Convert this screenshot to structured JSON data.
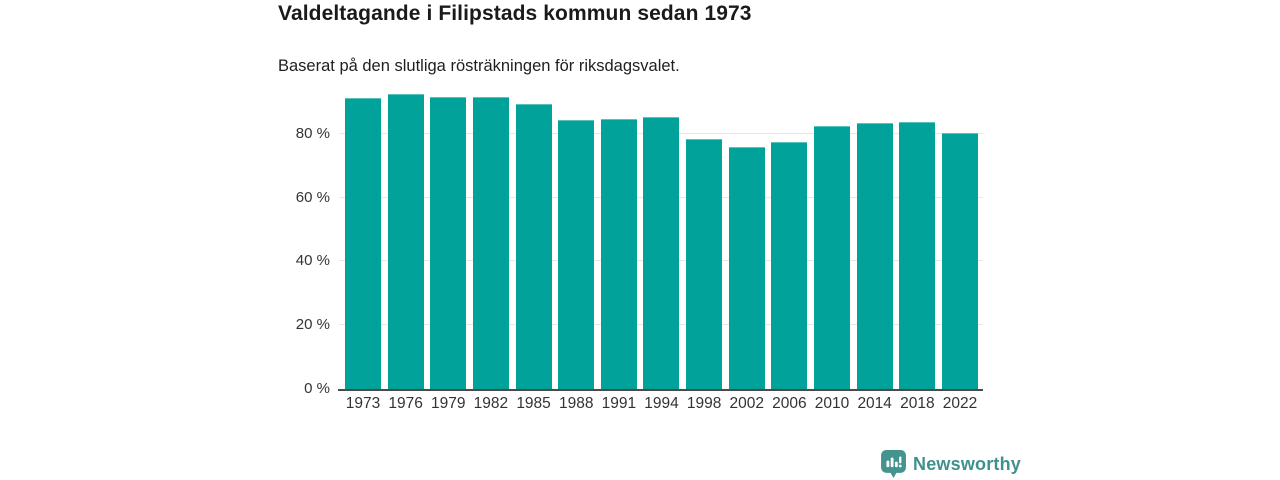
{
  "header": {
    "title": "Valdeltagande i Filipstads kommun sedan 1973",
    "subtitle": "Baserat på den slutliga rösträkningen för riksdagsvalet."
  },
  "chart_data": {
    "type": "bar",
    "title": "Valdeltagande i Filipstads kommun sedan 1973",
    "subtitle": "Baserat på den slutliga rösträkningen för riksdagsvalet.",
    "categories": [
      "1973",
      "1976",
      "1979",
      "1982",
      "1985",
      "1988",
      "1991",
      "1994",
      "1998",
      "2002",
      "2006",
      "2010",
      "2014",
      "2018",
      "2022"
    ],
    "values": [
      91.2,
      92.6,
      91.5,
      91.5,
      89.2,
      84.4,
      84.6,
      85.3,
      78.5,
      75.8,
      77.3,
      82.6,
      83.5,
      83.8,
      80.4
    ],
    "unit": "%",
    "xlabel": "",
    "ylabel": "",
    "ylim": [
      0,
      100
    ],
    "yticks": [
      0,
      20,
      40,
      60,
      80
    ],
    "ytick_suffix": " %",
    "grid": true,
    "legend_position": "none",
    "bar_color": "#00a29a"
  },
  "colors": {
    "bar": "#00a29a",
    "grid": "#e7e7e7",
    "axis": "#4a4a4a",
    "title_text": "#1a1a1a",
    "tick_text": "#333333",
    "brand": "#3f918d"
  },
  "footer": {
    "brand": "Newsworthy",
    "logo_icon": "newsworthy-bubble-barchart-icon"
  }
}
